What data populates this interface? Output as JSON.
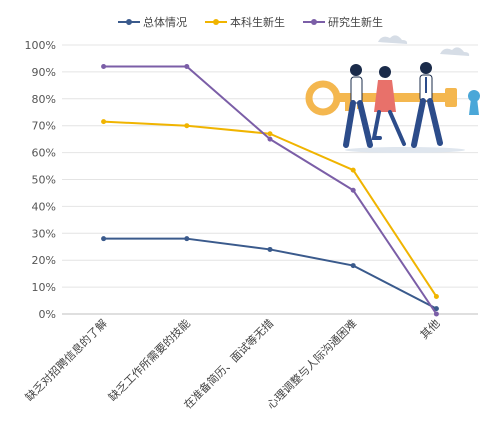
{
  "chart_data": {
    "type": "line",
    "categories": [
      "缺乏对招聘信息的了解",
      "缺乏工作所需要的技能",
      "在准备简历、面试等无措",
      "心理调整与人际沟通困难",
      "其他"
    ],
    "series": [
      {
        "name": "总体情况",
        "color": "#3a5a8c",
        "values": [
          28,
          28,
          24,
          18,
          2
        ]
      },
      {
        "name": "本科生新生",
        "color": "#f0b400",
        "values": [
          71.5,
          70,
          67,
          53.5,
          6.5
        ]
      },
      {
        "name": "研究生新生",
        "color": "#7b5ea7",
        "values": [
          92,
          92,
          65,
          46,
          0
        ]
      }
    ],
    "yticks": [
      "0%",
      "10%",
      "20%",
      "30%",
      "40%",
      "50%",
      "60%",
      "70%",
      "80%",
      "90%",
      "100%"
    ],
    "ylim": [
      0,
      100
    ],
    "grid": true,
    "legend_position": "top"
  }
}
